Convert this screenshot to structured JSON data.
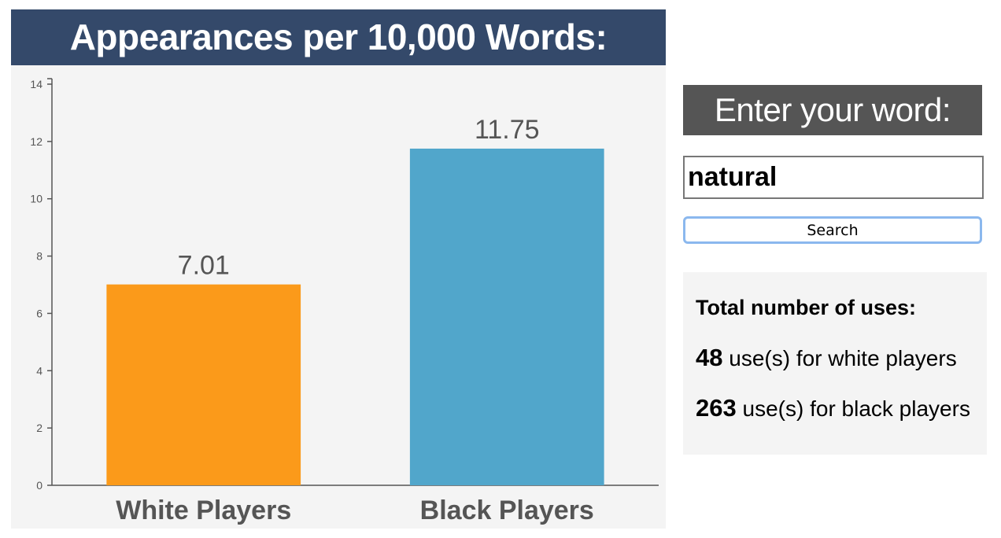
{
  "chart_data": {
    "type": "bar",
    "title": "Appearances per 10,000 Words:",
    "categories": [
      "White Players",
      "Black Players"
    ],
    "values": [
      7.01,
      11.75
    ],
    "value_labels": [
      "7.01",
      "11.75"
    ],
    "bar_colors": [
      "#fb9a1a",
      "#51a6cb"
    ],
    "ylim": [
      0,
      14
    ],
    "yticks": [
      0,
      2,
      4,
      6,
      8,
      10,
      12,
      14
    ],
    "xlabel": "",
    "ylabel": "",
    "grid": false,
    "legend": "none"
  },
  "sidebar": {
    "prompt": "Enter your word:",
    "word_value": "natural",
    "search_label": "Search",
    "stats": {
      "heading": "Total number of uses:",
      "white_count": "48",
      "white_text": " use(s) for white players",
      "black_count": "263",
      "black_text": " use(s) for black players"
    }
  },
  "colors": {
    "title_bg": "#34496a",
    "prompt_bg": "#555555",
    "panel_bg": "#f4f4f4",
    "focus_ring": "#8bb8ee"
  }
}
